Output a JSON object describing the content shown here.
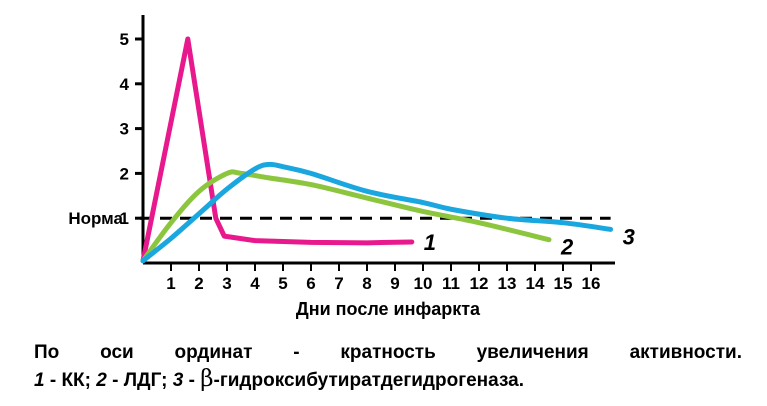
{
  "chart_data": {
    "type": "line",
    "xlabel": "Дни после инфаркта",
    "x_ticks": [
      "1",
      "2",
      "3",
      "4",
      "5",
      "6",
      "7",
      "8",
      "9",
      "10",
      "11",
      "12",
      "13",
      "14",
      "15",
      "16"
    ],
    "y_ticks": [
      "1",
      "2",
      "3",
      "4",
      "5"
    ],
    "y_reference": {
      "label": "Норма",
      "value": 1,
      "style": "dashed"
    },
    "xlim": [
      0,
      17
    ],
    "ylim": [
      0,
      5.5
    ],
    "series": [
      {
        "name": "1",
        "color": "#e8198c",
        "points": [
          [
            0,
            0.05
          ],
          [
            1.6,
            5.0
          ],
          [
            2.6,
            1.0
          ],
          [
            2.9,
            0.6
          ],
          [
            4.0,
            0.5
          ],
          [
            6,
            0.46
          ],
          [
            8,
            0.45
          ],
          [
            9.6,
            0.47
          ]
        ]
      },
      {
        "name": "2",
        "color": "#8cc63f",
        "points": [
          [
            0,
            0.05
          ],
          [
            1,
            0.9
          ],
          [
            2,
            1.6
          ],
          [
            3,
            2.0
          ],
          [
            3.5,
            2.0
          ],
          [
            4.5,
            1.9
          ],
          [
            6,
            1.75
          ],
          [
            8,
            1.45
          ],
          [
            10,
            1.15
          ],
          [
            12,
            0.9
          ],
          [
            14.5,
            0.52
          ]
        ]
      },
      {
        "name": "3",
        "color": "#1aa7df",
        "points": [
          [
            0,
            0.05
          ],
          [
            1,
            0.55
          ],
          [
            2,
            1.1
          ],
          [
            3,
            1.65
          ],
          [
            4,
            2.1
          ],
          [
            4.5,
            2.2
          ],
          [
            5,
            2.15
          ],
          [
            6,
            2.0
          ],
          [
            8,
            1.6
          ],
          [
            10,
            1.35
          ],
          [
            11,
            1.2
          ],
          [
            13,
            1.0
          ],
          [
            15,
            0.9
          ],
          [
            16.7,
            0.75
          ]
        ]
      }
    ]
  },
  "caption": {
    "line1": "По оси ординат - кратность увеличения активности.",
    "line2_num1": "1",
    "line2_text1": " - КК; ",
    "line2_num2": "2",
    "line2_text2": " - ЛДГ; ",
    "line2_num3": "3",
    "line2_text3": " - ",
    "line2_beta": "β",
    "line2_text4": "-гидроксибутиратдегидрогеназа."
  }
}
